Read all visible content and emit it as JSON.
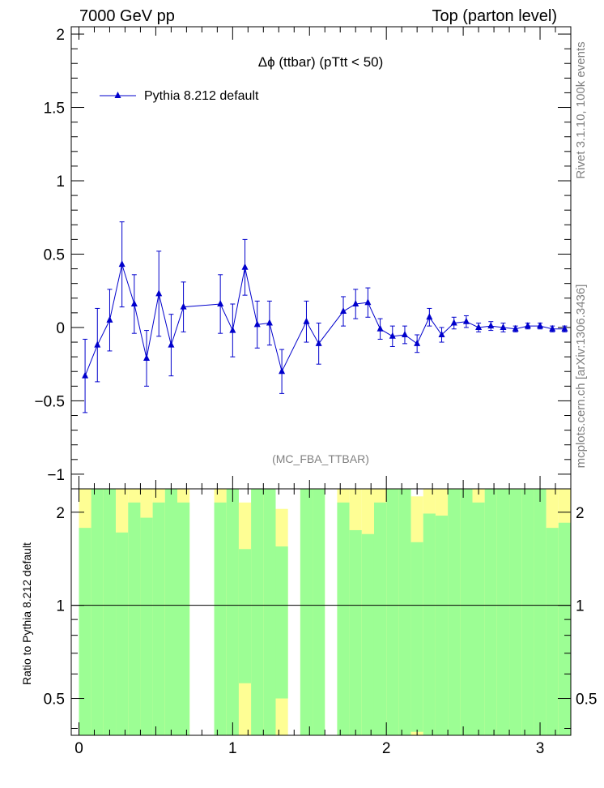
{
  "header": {
    "left": "7000 GeV pp",
    "right": "Top (parton level)"
  },
  "side": {
    "rivet": "Rivet 3.1.10,  100k events",
    "mcplots": "mcplots.cern.ch [arXiv:1306.3436]"
  },
  "chart_data": [
    {
      "type": "scatter",
      "title": "Δϕ (ttbar) (pTtt < 50)",
      "watermark": "(MC_FBA_TTBAR)",
      "xlim": [
        -0.05,
        3.2
      ],
      "ylim": [
        -1.1,
        2.05
      ],
      "yticks": [
        -1,
        -0.5,
        0,
        0.5,
        1,
        1.5,
        2
      ],
      "ytick_labels": [
        "−1",
        "−0.5",
        "0",
        "0.5",
        "1",
        "1.5",
        "2"
      ],
      "grid": false,
      "legend_position": "top-left",
      "series": [
        {
          "name": "Pythia 8.212 default",
          "color": "#0000cc",
          "x": [
            0.04,
            0.12,
            0.2,
            0.28,
            0.36,
            0.44,
            0.52,
            0.6,
            0.68,
            0.92,
            1.0,
            1.08,
            1.16,
            1.24,
            1.32,
            1.48,
            1.56,
            1.72,
            1.8,
            1.88,
            1.96,
            2.04,
            2.12,
            2.2,
            2.28,
            2.36,
            2.44,
            2.52,
            2.6,
            2.68,
            2.76,
            2.84,
            2.92,
            3.0,
            3.08,
            3.16
          ],
          "y": [
            -0.33,
            -0.12,
            0.05,
            0.43,
            0.16,
            -0.21,
            0.23,
            -0.12,
            0.14,
            0.16,
            -0.02,
            0.41,
            0.02,
            0.03,
            -0.3,
            0.04,
            -0.11,
            0.11,
            0.16,
            0.17,
            -0.01,
            -0.06,
            -0.05,
            -0.11,
            0.07,
            -0.05,
            0.03,
            0.04,
            0.0,
            0.01,
            0.0,
            -0.01,
            0.01,
            0.01,
            -0.01,
            -0.01
          ],
          "yerr": [
            0.25,
            0.25,
            0.21,
            0.29,
            0.2,
            0.19,
            0.29,
            0.21,
            0.17,
            0.2,
            0.18,
            0.19,
            0.16,
            0.15,
            0.15,
            0.14,
            0.14,
            0.1,
            0.1,
            0.1,
            0.07,
            0.07,
            0.06,
            0.06,
            0.06,
            0.05,
            0.04,
            0.04,
            0.03,
            0.03,
            0.03,
            0.02,
            0.02,
            0.02,
            0.02,
            0.02
          ]
        }
      ]
    },
    {
      "type": "bar",
      "ylabel": "Ratio to Pythia 8.212 default",
      "xlim": [
        -0.05,
        3.2
      ],
      "ylim": [
        0.38,
        2.38
      ],
      "ylog": true,
      "yticks": [
        0.5,
        1,
        2
      ],
      "ytick_labels": [
        "0.5",
        "1",
        "2"
      ],
      "xticks": [
        0,
        1,
        2,
        3
      ],
      "xtick_labels": [
        "0",
        "1",
        "2",
        "3"
      ],
      "reference_line": 1,
      "band_colors": {
        "green": "#9cfe94",
        "yellow": "#fefe94"
      },
      "bins": [
        {
          "x0": 0.0,
          "x1": 0.08,
          "g_lo": 0.1,
          "g_hi": 1.78,
          "y_lo": 0.1,
          "y_hi": 9
        },
        {
          "x0": 0.08,
          "x1": 0.16,
          "g_lo": 0.1,
          "g_hi": 9,
          "y_lo": 0.1,
          "y_hi": 9
        },
        {
          "x0": 0.16,
          "x1": 0.24,
          "g_lo": 0.1,
          "g_hi": 9,
          "y_lo": 0.1,
          "y_hi": 9
        },
        {
          "x0": 0.24,
          "x1": 0.32,
          "g_lo": 0.1,
          "g_hi": 1.72,
          "y_lo": 0.1,
          "y_hi": 9
        },
        {
          "x0": 0.32,
          "x1": 0.4,
          "g_lo": 0.1,
          "g_hi": 2.15,
          "y_lo": 0.1,
          "y_hi": 9
        },
        {
          "x0": 0.4,
          "x1": 0.48,
          "g_lo": 0.1,
          "g_hi": 1.92,
          "y_lo": 0.1,
          "y_hi": 9
        },
        {
          "x0": 0.48,
          "x1": 0.56,
          "g_lo": 0.1,
          "g_hi": 2.15,
          "y_lo": 0.1,
          "y_hi": 9
        },
        {
          "x0": 0.56,
          "x1": 0.64,
          "g_lo": 0.1,
          "g_hi": 9,
          "y_lo": 0.1,
          "y_hi": 9
        },
        {
          "x0": 0.64,
          "x1": 0.72,
          "g_lo": 0.1,
          "g_hi": 2.15,
          "y_lo": 0.1,
          "y_hi": 9
        },
        {
          "x0": 0.88,
          "x1": 0.96,
          "g_lo": 0.1,
          "g_hi": 2.15,
          "y_lo": 0.1,
          "y_hi": 9
        },
        {
          "x0": 0.96,
          "x1": 1.04,
          "g_lo": 0.1,
          "g_hi": 9,
          "y_lo": 0.1,
          "y_hi": 9
        },
        {
          "x0": 1.04,
          "x1": 1.12,
          "g_lo": 0.56,
          "g_hi": 1.52,
          "y_lo": 0.1,
          "y_hi": 2.15
        },
        {
          "x0": 1.12,
          "x1": 1.2,
          "g_lo": 0.1,
          "g_hi": 9,
          "y_lo": 0.1,
          "y_hi": 9
        },
        {
          "x0": 1.2,
          "x1": 1.28,
          "g_lo": 0.1,
          "g_hi": 9,
          "y_lo": 0.1,
          "y_hi": 9
        },
        {
          "x0": 1.28,
          "x1": 1.36,
          "g_lo": 0.5,
          "g_hi": 1.55,
          "y_lo": 0.1,
          "y_hi": 2.05
        },
        {
          "x0": 1.44,
          "x1": 1.52,
          "g_lo": 0.1,
          "g_hi": 9,
          "y_lo": 0.1,
          "y_hi": 9
        },
        {
          "x0": 1.52,
          "x1": 1.6,
          "g_lo": 0.1,
          "g_hi": 9,
          "y_lo": 0.1,
          "y_hi": 9
        },
        {
          "x0": 1.68,
          "x1": 1.76,
          "g_lo": 0.1,
          "g_hi": 2.15,
          "y_lo": 0.1,
          "y_hi": 9
        },
        {
          "x0": 1.76,
          "x1": 1.84,
          "g_lo": 0.1,
          "g_hi": 1.75,
          "y_lo": 0.1,
          "y_hi": 9
        },
        {
          "x0": 1.84,
          "x1": 1.92,
          "g_lo": 0.1,
          "g_hi": 1.7,
          "y_lo": 0.1,
          "y_hi": 9
        },
        {
          "x0": 1.92,
          "x1": 2.0,
          "g_lo": 0.1,
          "g_hi": 2.15,
          "y_lo": 0.1,
          "y_hi": 9
        },
        {
          "x0": 2.0,
          "x1": 2.08,
          "g_lo": 0.1,
          "g_hi": 9,
          "y_lo": 0.1,
          "y_hi": 9
        },
        {
          "x0": 2.08,
          "x1": 2.16,
          "g_lo": 0.1,
          "g_hi": 9,
          "y_lo": 0.1,
          "y_hi": 9
        },
        {
          "x0": 2.16,
          "x1": 2.24,
          "g_lo": 0.39,
          "g_hi": 1.6,
          "y_lo": 0.1,
          "y_hi": 2.25
        },
        {
          "x0": 2.24,
          "x1": 2.32,
          "g_lo": 0.1,
          "g_hi": 1.98,
          "y_lo": 0.1,
          "y_hi": 9
        },
        {
          "x0": 2.32,
          "x1": 2.4,
          "g_lo": 0.1,
          "g_hi": 1.95,
          "y_lo": 0.1,
          "y_hi": 9
        },
        {
          "x0": 2.4,
          "x1": 2.48,
          "g_lo": 0.1,
          "g_hi": 9,
          "y_lo": 0.1,
          "y_hi": 9
        },
        {
          "x0": 2.48,
          "x1": 2.56,
          "g_lo": 0.1,
          "g_hi": 9,
          "y_lo": 0.1,
          "y_hi": 9
        },
        {
          "x0": 2.56,
          "x1": 2.64,
          "g_lo": 0.1,
          "g_hi": 2.15,
          "y_lo": 0.1,
          "y_hi": 9
        },
        {
          "x0": 2.64,
          "x1": 2.72,
          "g_lo": 0.1,
          "g_hi": 9,
          "y_lo": 0.1,
          "y_hi": 9
        },
        {
          "x0": 2.72,
          "x1": 2.8,
          "g_lo": 0.1,
          "g_hi": 9,
          "y_lo": 0.1,
          "y_hi": 9
        },
        {
          "x0": 2.8,
          "x1": 2.88,
          "g_lo": 0.1,
          "g_hi": 9,
          "y_lo": 0.1,
          "y_hi": 9
        },
        {
          "x0": 2.88,
          "x1": 2.96,
          "g_lo": 0.1,
          "g_hi": 9,
          "y_lo": 0.1,
          "y_hi": 9
        },
        {
          "x0": 2.96,
          "x1": 3.04,
          "g_lo": 0.1,
          "g_hi": 9,
          "y_lo": 0.1,
          "y_hi": 9
        },
        {
          "x0": 3.04,
          "x1": 3.12,
          "g_lo": 0.1,
          "g_hi": 1.78,
          "y_lo": 0.1,
          "y_hi": 9
        },
        {
          "x0": 3.12,
          "x1": 3.2,
          "g_lo": 0.1,
          "g_hi": 1.85,
          "y_lo": 0.1,
          "y_hi": 9
        }
      ]
    }
  ]
}
